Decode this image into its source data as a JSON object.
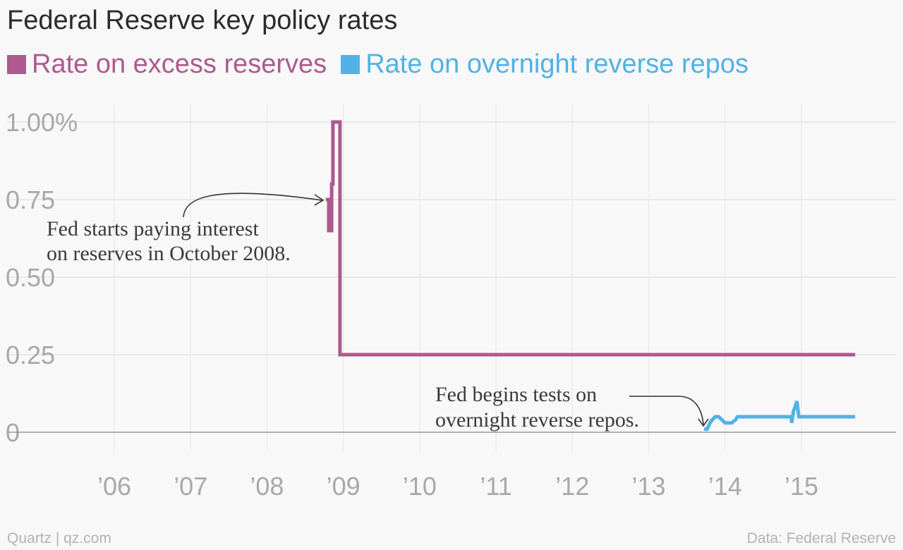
{
  "chart_data": {
    "type": "line",
    "title": "Federal Reserve key policy rates",
    "ylim": [
      0,
      1.0
    ],
    "yticks": [
      0,
      0.25,
      0.5,
      0.75,
      1.0
    ],
    "ytick_labels": [
      "0",
      "0.25",
      "0.50",
      "0.75",
      "1.00%"
    ],
    "xticks": [
      2006,
      2007,
      2008,
      2009,
      2010,
      2011,
      2012,
      2013,
      2014,
      2015
    ],
    "xtick_labels": [
      "’06",
      "’07",
      "’08",
      "’09",
      "’10",
      "’11",
      "’12",
      "’13",
      "’14",
      "’15"
    ],
    "grid": true,
    "legend_position": "top",
    "series": [
      {
        "name": "Rate on excess reserves",
        "color": "#ad5a8e",
        "x": [
          "2008-10-09",
          "2008-10-23",
          "2008-10-23",
          "2008-11-06",
          "2008-11-06",
          "2008-11-12",
          "2008-11-12",
          "2008-12-16",
          "2008-12-16",
          "2015-09-15"
        ],
        "y": [
          0.75,
          0.75,
          0.65,
          0.65,
          0.8,
          0.8,
          1.0,
          1.0,
          0.25,
          0.25
        ]
      },
      {
        "name": "Rate on overnight reverse repos",
        "color": "#51b2e5",
        "x": [
          "2013-09-23",
          "2013-10-07",
          "2013-10-21",
          "2013-11-01",
          "2013-11-15",
          "2013-12-01",
          "2014-01-01",
          "2014-02-01",
          "2014-02-20",
          "2014-03-01",
          "2014-11-15",
          "2014-11-15",
          "2014-11-25",
          "2014-12-01",
          "2014-12-10",
          "2014-12-20",
          "2015-01-01",
          "2015-09-15"
        ],
        "y": [
          0.01,
          0.01,
          0.03,
          0.04,
          0.05,
          0.05,
          0.03,
          0.03,
          0.04,
          0.05,
          0.05,
          0.03,
          0.07,
          0.08,
          0.1,
          0.05,
          0.05,
          0.05
        ]
      }
    ],
    "annotations": [
      {
        "lines": [
          "Fed starts paying interest",
          "on reserves in October 2008."
        ]
      },
      {
        "lines": [
          "Fed begins tests on",
          "overnight reverse repos."
        ]
      }
    ]
  },
  "footer": {
    "source_left": "Quartz | qz.com",
    "source_right": "Data: Federal Reserve"
  }
}
